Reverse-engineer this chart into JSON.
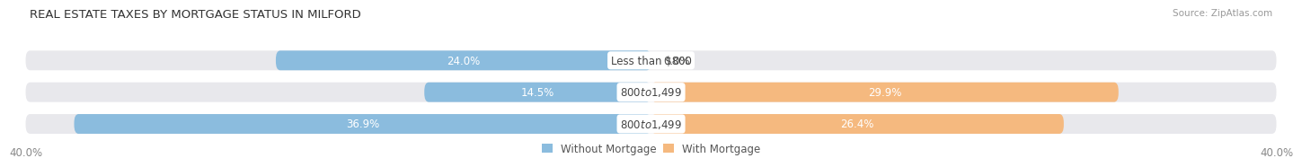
{
  "title": "REAL ESTATE TAXES BY MORTGAGE STATUS IN MILFORD",
  "source": "Source: ZipAtlas.com",
  "rows": [
    {
      "label": "Less than $800",
      "without_mortgage": 24.0,
      "with_mortgage": 0.0
    },
    {
      "label": "$800 to $1,499",
      "without_mortgage": 14.5,
      "with_mortgage": 29.9
    },
    {
      "label": "$800 to $1,499",
      "without_mortgage": 36.9,
      "with_mortgage": 26.4
    }
  ],
  "x_max": 40.0,
  "x_min": -40.0,
  "color_without": "#8BBCDE",
  "color_with": "#F5B97F",
  "bar_bg_color": "#E8E8EC",
  "bar_height": 0.62,
  "label_fontsize": 8.5,
  "title_fontsize": 9.5,
  "tick_fontsize": 8.5,
  "source_fontsize": 7.5,
  "legend_without": "Without Mortgage",
  "legend_with": "With Mortgage"
}
